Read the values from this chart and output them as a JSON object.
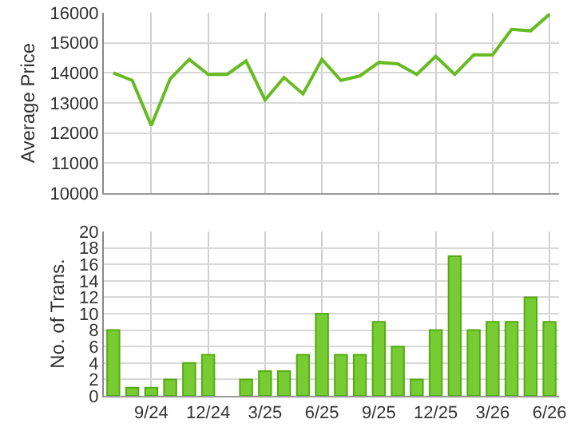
{
  "chart_data": [
    {
      "type": "line",
      "ylabel": "Average Price",
      "categories": [
        null,
        null,
        null,
        null,
        null,
        null,
        null,
        null,
        null,
        null,
        null,
        null,
        null,
        null,
        null,
        null,
        null,
        null,
        null,
        null,
        null,
        null,
        null,
        null
      ],
      "values": [
        14000,
        13750,
        12250,
        13800,
        14450,
        13950,
        13950,
        14400,
        13100,
        13850,
        13300,
        14450,
        13750,
        13900,
        14350,
        14300,
        13950,
        14550,
        13950,
        14600,
        14600,
        15450,
        15400,
        15950
      ],
      "color": "#66bb22",
      "ylim": [
        10000,
        16000
      ],
      "yticks": [
        10000,
        11000,
        12000,
        13000,
        14000,
        15000,
        16000
      ],
      "grid": true,
      "tick_labels": "y",
      "marker": "none"
    },
    {
      "type": "bar",
      "ylabel": "No. of Trans.",
      "categories": [
        null,
        null,
        "9/24",
        null,
        null,
        "12/24",
        null,
        null,
        "3/25",
        null,
        null,
        "6/25",
        null,
        null,
        "9/25",
        null,
        null,
        "12/25",
        null,
        null,
        "3/26",
        null,
        null,
        "6/26"
      ],
      "values": [
        8,
        1,
        1,
        2,
        4,
        5,
        null,
        2,
        3,
        3,
        5,
        10,
        5,
        5,
        9,
        6,
        2,
        8,
        17,
        8,
        9,
        9,
        12,
        9
      ],
      "color": "#77cc33",
      "ylim": [
        0,
        20
      ],
      "yticks": [
        0,
        2,
        4,
        6,
        8,
        10,
        12,
        14,
        16,
        18,
        20
      ],
      "grid": true
    }
  ]
}
